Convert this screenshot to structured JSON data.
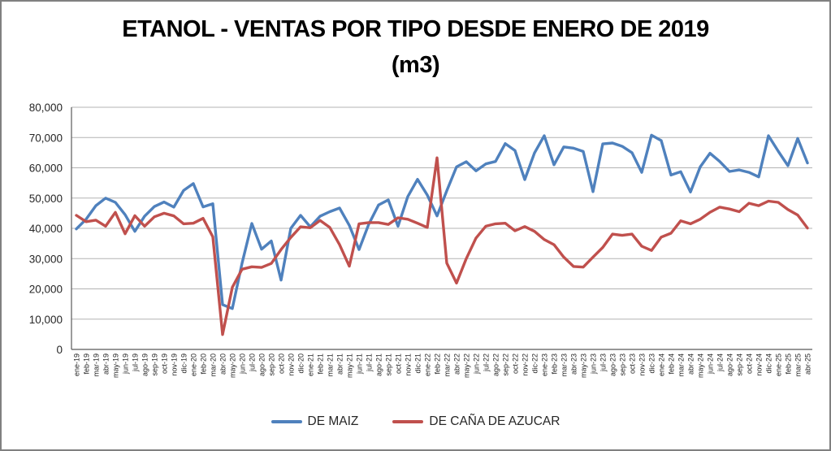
{
  "chart": {
    "title_line1": "ETANOL - VENTAS POR TIPO DESDE ENERO DE 2019",
    "title_line2": "(m3)"
  },
  "chart_data": {
    "type": "line",
    "title": "ETANOL - VENTAS POR TIPO DESDE ENERO DE 2019 (m3)",
    "categories": [
      "ene-19",
      "feb-19",
      "mar-19",
      "abr-19",
      "may-19",
      "jun-19",
      "jul-19",
      "ago-19",
      "sep-19",
      "oct-19",
      "nov-19",
      "dic-19",
      "ene-20",
      "feb-20",
      "mar-20",
      "abr-20",
      "may-20",
      "jun-20",
      "jul-20",
      "ago-20",
      "sep-20",
      "oct-20",
      "nov-20",
      "dic-20",
      "ene-21",
      "feb-21",
      "mar-21",
      "abr-21",
      "may-21",
      "jun-21",
      "jul-21",
      "ago-21",
      "sep-21",
      "oct-21",
      "nov-21",
      "dic-21",
      "ene-22",
      "feb-22",
      "mar-22",
      "abr-22",
      "may-22",
      "jun-22",
      "jul-22",
      "ago-22",
      "sep-22",
      "oct-22",
      "nov-22",
      "dic-22",
      "ene-23",
      "feb-23",
      "mar-23",
      "abr-23",
      "may-23",
      "jun-23",
      "jul-23",
      "ago-23",
      "sep-23",
      "oct-23",
      "nov-23",
      "dic-23",
      "ene-24",
      "feb-24",
      "mar-24",
      "abr-24",
      "may-24",
      "jun-24",
      "jul-24",
      "ago-24",
      "sep-24",
      "oct-24",
      "nov-24",
      "dic-24",
      "ene-25",
      "feb-25",
      "mar-25",
      "abr-25"
    ],
    "series": [
      {
        "name": "DE MAIZ",
        "color": "#4F81BD",
        "values": [
          39800,
          43000,
          47500,
          50000,
          48600,
          44500,
          39000,
          44000,
          47200,
          48700,
          47000,
          52500,
          54800,
          47100,
          48100,
          14800,
          13500,
          28500,
          41600,
          33100,
          35800,
          22900,
          40000,
          44300,
          40500,
          44000,
          45500,
          46700,
          41000,
          33000,
          41400,
          47700,
          49400,
          40700,
          50500,
          56200,
          51000,
          44100,
          52400,
          60300,
          62000,
          59000,
          61300,
          62100,
          68000,
          65700,
          56100,
          64900,
          70600,
          61000,
          66900,
          66500,
          65400,
          52100,
          67900,
          68200,
          67100,
          65000,
          58500,
          70800,
          69000,
          57600,
          58700,
          52000,
          60300,
          64800,
          62100,
          58800,
          59300,
          58500,
          57000,
          70600,
          65500,
          60700,
          69700,
          61600
        ]
      },
      {
        "name": "DE CAÑA DE AZUCAR",
        "color": "#C0504D",
        "values": [
          44300,
          42200,
          42700,
          40700,
          45300,
          38200,
          44200,
          40700,
          43800,
          45000,
          44100,
          41500,
          41700,
          43300,
          37200,
          4900,
          20500,
          26500,
          27300,
          27100,
          28400,
          33000,
          37000,
          40500,
          40200,
          42600,
          40300,
          34600,
          27500,
          41500,
          41900,
          41900,
          41300,
          43500,
          43000,
          41700,
          40300,
          63300,
          28500,
          21900,
          30000,
          36800,
          40700,
          41500,
          41700,
          39200,
          40600,
          39000,
          36300,
          34600,
          30500,
          27400,
          27200,
          30500,
          33700,
          38100,
          37700,
          38100,
          34100,
          32700,
          37100,
          38400,
          42500,
          41500,
          43000,
          45300,
          47000,
          46400,
          45500,
          48300,
          47500,
          49000,
          48600,
          46200,
          44400,
          40100
        ]
      }
    ],
    "ylim": [
      0,
      80000
    ],
    "ytick_step": 10000,
    "ytick_labels": [
      "0",
      "10,000",
      "20,000",
      "30,000",
      "40,000",
      "50,000",
      "60,000",
      "70,000",
      "80,000"
    ],
    "grid": true,
    "legend_position": "bottom",
    "colors": {
      "gridline": "#b3b3b3",
      "axis": "#595959",
      "tick_text": "#262626",
      "background": "#ffffff",
      "frame_border": "#808080"
    }
  }
}
